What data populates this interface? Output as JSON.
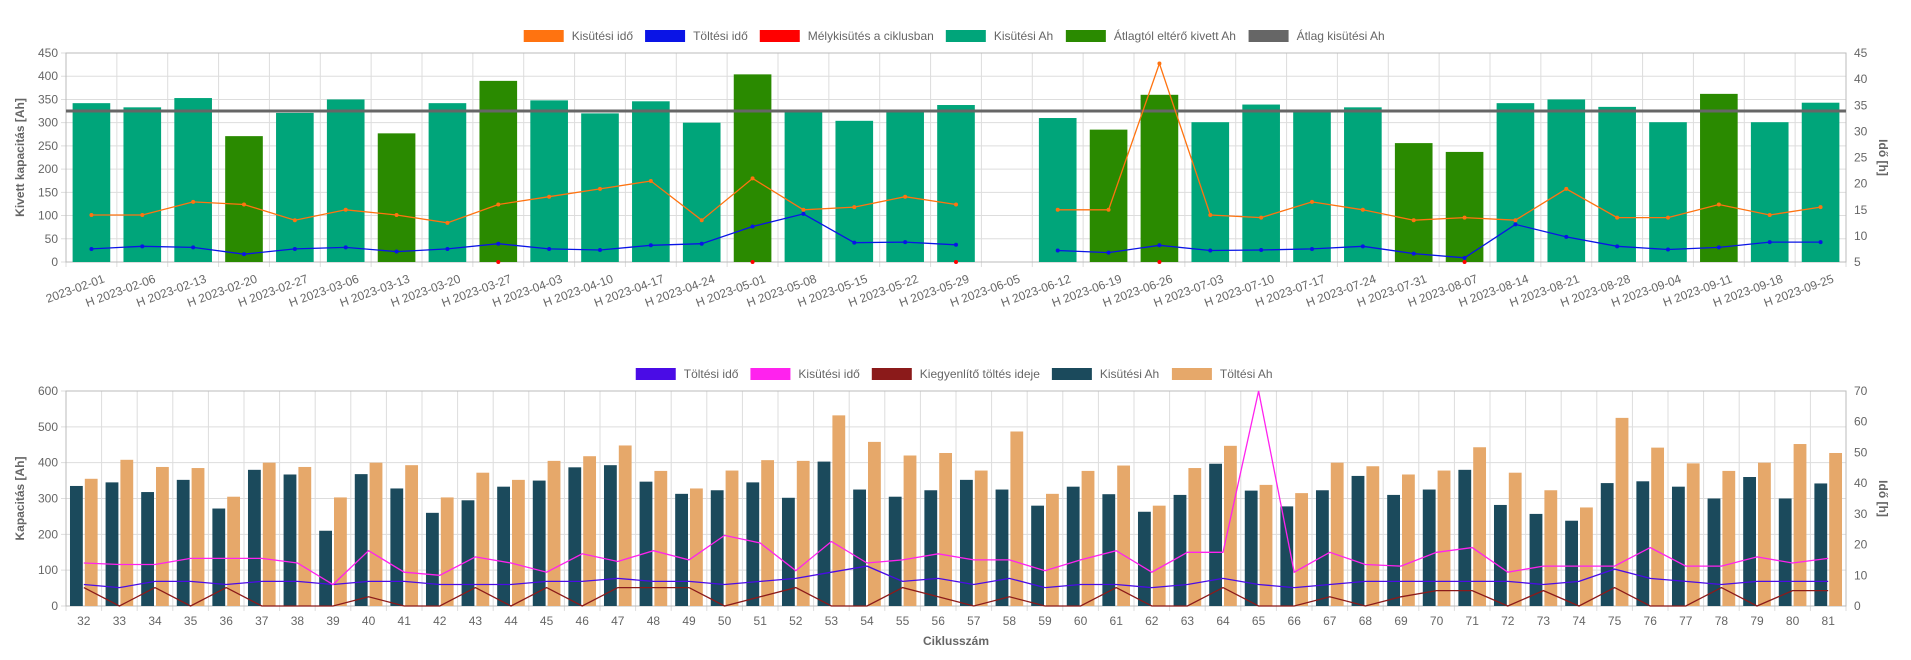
{
  "chart_data": [
    {
      "type": "bar",
      "legend": [
        {
          "label": "Kisütési idő",
          "color": "#ff7310",
          "kind": "line"
        },
        {
          "label": "Töltési idő",
          "color": "#0a14e6",
          "kind": "line"
        },
        {
          "label": "Mélykisütés a ciklusban",
          "color": "#ff0000",
          "kind": "point"
        },
        {
          "label": "Kisütési Ah",
          "color": "#00a57a",
          "kind": "bar"
        },
        {
          "label": "Átlagtól eltérő kivett Ah",
          "color": "#2a8a00",
          "kind": "bar"
        },
        {
          "label": "Átlag kisütési Ah",
          "color": "#666666",
          "kind": "line"
        }
      ],
      "categories": [
        "2023-02-01",
        "H 2023-02-06",
        "H 2023-02-13",
        "H 2023-02-20",
        "H 2023-02-27",
        "H 2023-03-06",
        "H 2023-03-13",
        "H 2023-03-20",
        "H 2023-03-27",
        "H 2023-04-03",
        "H 2023-04-10",
        "H 2023-04-17",
        "H 2023-04-24",
        "H 2023-05-01",
        "H 2023-05-08",
        "H 2023-05-15",
        "H 2023-05-22",
        "H 2023-05-29",
        "H 2023-06-05",
        "H 2023-06-12",
        "H 2023-06-19",
        "H 2023-06-26",
        "H 2023-07-03",
        "H 2023-07-10",
        "H 2023-07-17",
        "H 2023-07-24",
        "H 2023-07-31",
        "H 2023-08-07",
        "H 2023-08-14",
        "H 2023-08-21",
        "H 2023-08-28",
        "H 2023-09-04",
        "H 2023-09-11",
        "H 2023-09-18",
        "H 2023-09-25"
      ],
      "kisutesi_ah": [
        342,
        333,
        353,
        271,
        321,
        350,
        277,
        342,
        390,
        348,
        320,
        346,
        300,
        404,
        327,
        304,
        327,
        338,
        null,
        310,
        285,
        360,
        301,
        339,
        327,
        333,
        256,
        237,
        342,
        350,
        334,
        301,
        362,
        301,
        343
      ],
      "deviating": [
        false,
        false,
        false,
        true,
        false,
        false,
        true,
        false,
        true,
        false,
        false,
        false,
        false,
        true,
        false,
        false,
        false,
        false,
        false,
        false,
        true,
        true,
        false,
        false,
        false,
        false,
        true,
        true,
        false,
        false,
        false,
        false,
        true,
        false,
        false
      ],
      "avg_ah": 325,
      "kisutesi_ido": [
        14,
        14,
        16.5,
        16,
        13,
        15,
        14,
        12.5,
        16,
        17.5,
        19,
        20.5,
        13,
        21,
        15,
        15.5,
        17.5,
        16,
        null,
        15,
        15,
        43,
        14,
        13.5,
        16.5,
        15,
        13,
        13.5,
        13,
        19,
        13.5,
        13.5,
        16,
        14,
        15.5
      ],
      "toltesi_ido": [
        7.5,
        8,
        7.8,
        6.5,
        7.5,
        7.8,
        7,
        7.5,
        8.5,
        7.5,
        7.3,
        8.2,
        8.5,
        11.8,
        14.2,
        8.7,
        8.8,
        8.3,
        null,
        7.2,
        6.8,
        8.2,
        7.2,
        7.3,
        7.5,
        8,
        6.6,
        5.8,
        12.2,
        9.8,
        8,
        7.4,
        7.8,
        8.8,
        8.8
      ],
      "melykisutes": [
        8,
        13,
        17,
        21,
        27
      ],
      "ylim_left": [
        0,
        450
      ],
      "ylim_right": [
        5,
        45
      ],
      "yticks_left": [
        0,
        50,
        100,
        150,
        200,
        250,
        300,
        350,
        400,
        450
      ],
      "yticks_right": [
        5,
        10,
        15,
        20,
        25,
        30,
        35,
        40,
        45
      ],
      "ylabel_left": "Kivett kapacitás [Ah]",
      "ylabel_right": "Idő [h]"
    },
    {
      "type": "bar",
      "legend": [
        {
          "label": "Töltési idő",
          "color": "#4a0ce6",
          "kind": "line"
        },
        {
          "label": "Kisütési idő",
          "color": "#ff22ee",
          "kind": "line"
        },
        {
          "label": "Kiegyenlítő töltés ideje",
          "color": "#8b1a1a",
          "kind": "line"
        },
        {
          "label": "Kisütési Ah",
          "color": "#1b4a5c",
          "kind": "bar"
        },
        {
          "label": "Töltési Ah",
          "color": "#e6a86a",
          "kind": "bar"
        }
      ],
      "categories": [
        "32",
        "33",
        "34",
        "35",
        "36",
        "37",
        "38",
        "39",
        "40",
        "41",
        "42",
        "43",
        "44",
        "45",
        "46",
        "47",
        "48",
        "49",
        "50",
        "51",
        "52",
        "53",
        "54",
        "55",
        "56",
        "57",
        "58",
        "59",
        "60",
        "61",
        "62",
        "63",
        "64",
        "65",
        "66",
        "67",
        "68",
        "69",
        "70",
        "71",
        "72",
        "73",
        "74",
        "75",
        "76",
        "77",
        "78",
        "79",
        "80",
        "81"
      ],
      "kisutesi_ah": [
        335,
        345,
        318,
        352,
        272,
        380,
        367,
        210,
        368,
        328,
        260,
        295,
        333,
        350,
        387,
        393,
        347,
        313,
        323,
        345,
        302,
        403,
        325,
        305,
        323,
        352,
        325,
        280,
        333,
        312,
        263,
        310,
        397,
        322,
        278,
        323,
        363,
        310,
        325,
        380,
        282,
        257,
        238,
        343,
        348,
        333,
        300,
        360,
        300,
        342
      ],
      "toltesi_ah": [
        355,
        408,
        388,
        385,
        305,
        400,
        388,
        303,
        400,
        393,
        303,
        372,
        352,
        405,
        418,
        448,
        377,
        328,
        378,
        407,
        405,
        532,
        458,
        420,
        427,
        378,
        487,
        313,
        377,
        392,
        280,
        385,
        447,
        338,
        315,
        400,
        390,
        367,
        378,
        443,
        372,
        323,
        275,
        525,
        442,
        398,
        377,
        400,
        452,
        427
      ],
      "toltesi_ido": [
        7,
        6,
        8,
        8,
        7,
        8,
        8,
        7,
        8,
        8,
        7,
        7,
        7,
        8,
        8,
        9,
        8,
        8,
        7,
        8,
        9,
        11,
        13,
        8,
        9,
        7,
        9,
        6,
        7,
        7,
        6,
        7,
        9,
        7,
        6,
        7,
        8,
        8,
        8,
        8,
        8,
        7,
        8,
        12,
        9,
        8,
        7,
        8,
        8,
        8
      ],
      "kisutesi_ido": [
        14,
        13.5,
        13.5,
        15.5,
        15.5,
        15.5,
        14,
        7,
        18,
        11,
        10,
        16,
        14,
        11,
        17,
        14.5,
        18,
        15,
        23,
        20.5,
        11.5,
        21,
        14,
        15,
        17,
        15,
        15,
        11.5,
        15,
        18,
        11,
        17.5,
        17.5,
        70,
        11,
        17.5,
        13.5,
        13,
        17.5,
        19,
        11,
        13,
        13,
        13,
        19,
        13,
        13,
        16,
        14,
        15.5
      ],
      "kiegyenlito_ido": [
        6,
        0,
        6,
        0,
        6,
        0,
        0,
        0,
        3,
        0,
        0,
        6,
        0,
        6,
        0,
        6,
        6,
        6,
        0,
        3,
        6,
        0,
        0,
        6,
        3,
        0,
        3,
        0,
        0,
        6,
        0,
        0,
        6,
        0,
        0,
        3,
        0,
        3,
        5,
        5,
        0,
        5,
        0,
        6,
        0,
        0,
        6,
        0,
        5,
        5
      ],
      "ylim_left": [
        0,
        600
      ],
      "ylim_right": [
        0,
        70
      ],
      "yticks_left": [
        0,
        100,
        200,
        300,
        400,
        500,
        600
      ],
      "yticks_right": [
        0,
        10,
        20,
        30,
        40,
        50,
        60,
        70
      ],
      "ylabel_left": "Kapacitás [Ah]",
      "ylabel_right": "Idő [h]",
      "xlabel": "Ciklusszám"
    }
  ]
}
